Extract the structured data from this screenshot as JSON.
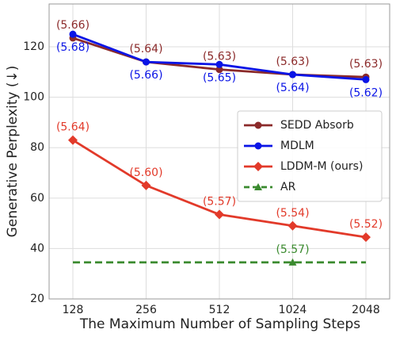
{
  "chart_data": {
    "type": "line",
    "x_label": "The Maximum Number of Sampling Steps",
    "y_label": "Generative Perplexity (↓)",
    "categories": [
      "128",
      "256",
      "512",
      "1024",
      "2048"
    ],
    "ylim": [
      20,
      137
    ],
    "yticks": [
      20,
      40,
      60,
      80,
      100,
      120
    ],
    "grid": true,
    "legend": "right",
    "series": [
      {
        "name": "SEDD Absorb",
        "color": "#8b2a2a",
        "marker": "circle",
        "label_position": "above",
        "values": [
          123.5,
          114,
          111,
          109,
          108
        ],
        "point_labels": [
          "(5.66)",
          "(5.64)",
          "(5.63)",
          "(5.63)",
          "(5.63)"
        ]
      },
      {
        "name": "MDLM",
        "color": "#0a14e6",
        "marker": "circle",
        "label_position": "below",
        "values": [
          125,
          114,
          113,
          109,
          107
        ],
        "point_labels": [
          "(5.68)",
          "(5.66)",
          "(5.65)",
          "(5.64)",
          "(5.62)"
        ]
      },
      {
        "name": "LDDM-M (ours)",
        "color": "#e23a2a",
        "marker": "diamond",
        "label_position": "above",
        "values": [
          83,
          65,
          53.5,
          49,
          44.5
        ],
        "point_labels": [
          "(5.64)",
          "(5.60)",
          "(5.57)",
          "(5.54)",
          "(5.52)"
        ]
      },
      {
        "name": "AR",
        "color": "#3a8a2e",
        "marker": "triangle",
        "dashed": true,
        "marker_index": 3,
        "label_position": "above",
        "values": [
          34.5,
          34.5,
          34.5,
          34.5,
          34.5
        ],
        "point_labels": [
          null,
          null,
          null,
          "(5.57)",
          null
        ]
      }
    ]
  }
}
